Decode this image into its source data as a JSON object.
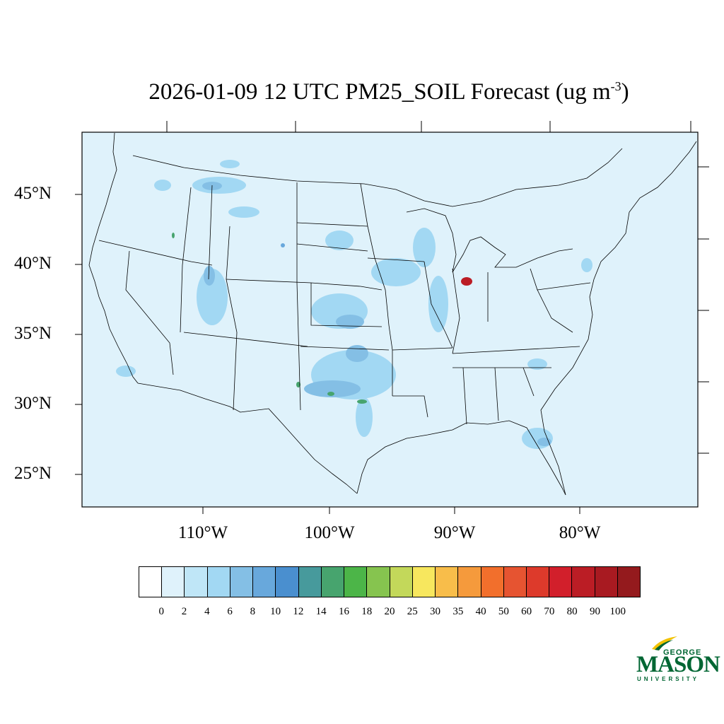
{
  "title": {
    "main": "2026-01-09 12 UTC PM25_SOIL Forecast (ug m",
    "superscript": "-3",
    "close": ")"
  },
  "map": {
    "background_color": "#dff2fb",
    "latitude_labels": [
      "45°N",
      "40°N",
      "35°N",
      "30°N",
      "25°N"
    ],
    "longitude_labels": [
      "110°W",
      "100°W",
      "90°W",
      "80°W"
    ]
  },
  "colorbar": {
    "colors": [
      "#ffffff",
      "#dff2fb",
      "#bfe6f7",
      "#a2d8f3",
      "#84bfe5",
      "#68a8dc",
      "#4a8fcf",
      "#479a9c",
      "#47a46e",
      "#4cb548",
      "#86c44f",
      "#c3d85a",
      "#f7e75e",
      "#f8bd4a",
      "#f59a3c",
      "#f26f2c",
      "#e65431",
      "#dd3a2b",
      "#d21f2b",
      "#bb1d25",
      "#a81a21",
      "#941a1d"
    ],
    "labels": [
      "0",
      "2",
      "4",
      "6",
      "8",
      "10",
      "12",
      "14",
      "16",
      "18",
      "20",
      "25",
      "30",
      "35",
      "40",
      "50",
      "60",
      "70",
      "80",
      "90",
      "100"
    ]
  },
  "hotspot_colors": {
    "light": "#a2d8f3",
    "medium": "#84bfe5",
    "dark": "#68a8dc",
    "green": "#47a46e",
    "red": "#bb1d25"
  },
  "logo": {
    "line1": "GEORGE",
    "line2": "MASON",
    "line3": "UNIVERSITY",
    "green": "#006633",
    "gold": "#f2c200"
  }
}
